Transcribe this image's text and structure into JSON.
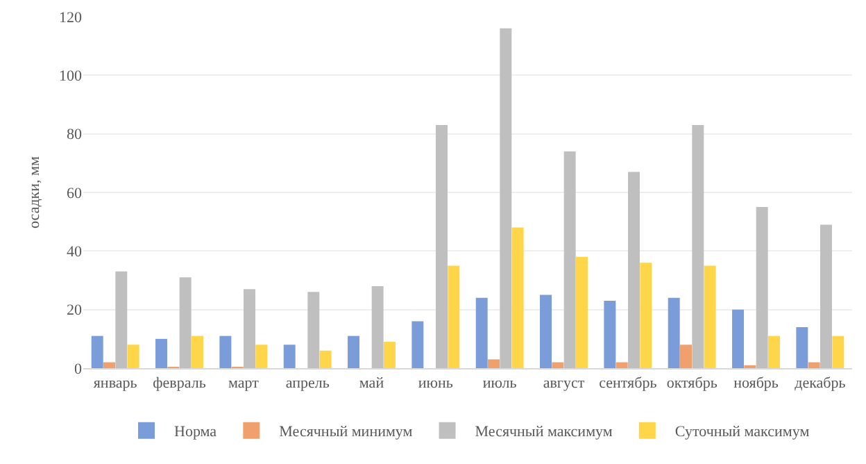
{
  "chart_data": {
    "type": "bar",
    "ylabel": "осадки, мм",
    "categories": [
      "январь",
      "февраль",
      "март",
      "апрель",
      "май",
      "июнь",
      "июль",
      "август",
      "сентябрь",
      "октябрь",
      "ноябрь",
      "декабрь"
    ],
    "series": [
      {
        "name": "Норма",
        "color": "#7a9cd9",
        "values": [
          11,
          10,
          11,
          8,
          11,
          16,
          24,
          25,
          23,
          24,
          20,
          14
        ]
      },
      {
        "name": "Месячный минимум",
        "color": "#f0a06c",
        "values": [
          2,
          0.3,
          0.3,
          0,
          0,
          0,
          3,
          2,
          2,
          8,
          1,
          2
        ]
      },
      {
        "name": "Месячный максимум",
        "color": "#bfbfbf",
        "values": [
          33,
          31,
          27,
          26,
          28,
          83,
          116,
          74,
          67,
          83,
          55,
          49
        ]
      },
      {
        "name": "Суточный максимум",
        "color": "#ffd54a",
        "values": [
          8,
          11,
          8,
          6,
          9,
          35,
          48,
          38,
          36,
          35,
          11,
          11
        ]
      }
    ],
    "ylim": [
      0,
      120
    ],
    "yticks": [
      0,
      20,
      40,
      60,
      80,
      100,
      120
    ],
    "grid": "y",
    "legend": "bottom"
  }
}
